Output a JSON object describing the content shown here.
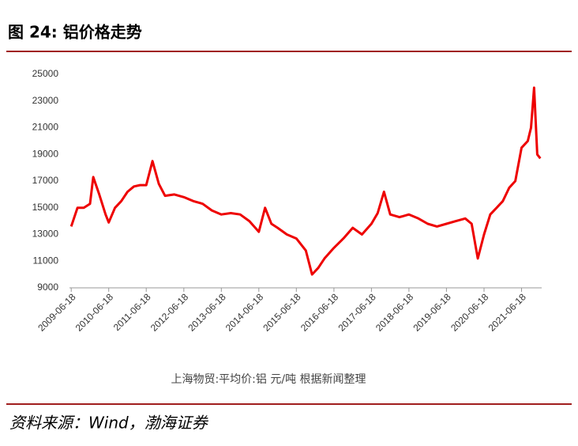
{
  "chart_data": {
    "type": "line",
    "title": "图 24:  铝价格走势",
    "note": "上海物贸:平均价:铝  元/吨  根据新闻整理",
    "source": "资料来源：Wind，渤海证券",
    "x": [
      "2009-06-18",
      "2009-08-18",
      "2009-10-18",
      "2009-12-18",
      "2010-01-18",
      "2010-03-18",
      "2010-05-18",
      "2010-06-18",
      "2010-08-18",
      "2010-10-18",
      "2010-12-18",
      "2011-02-18",
      "2011-04-18",
      "2011-06-18",
      "2011-08-18",
      "2011-10-18",
      "2011-12-18",
      "2012-03-18",
      "2012-06-18",
      "2012-09-18",
      "2012-12-18",
      "2013-03-18",
      "2013-06-18",
      "2013-09-18",
      "2013-12-18",
      "2014-03-18",
      "2014-06-18",
      "2014-08-18",
      "2014-10-18",
      "2014-12-18",
      "2015-03-18",
      "2015-06-18",
      "2015-09-18",
      "2015-11-18",
      "2016-01-18",
      "2016-03-18",
      "2016-06-18",
      "2016-09-18",
      "2016-12-18",
      "2017-03-18",
      "2017-06-18",
      "2017-08-18",
      "2017-10-18",
      "2017-12-18",
      "2018-03-18",
      "2018-06-18",
      "2018-09-18",
      "2018-12-18",
      "2019-03-18",
      "2019-06-18",
      "2019-09-18",
      "2019-12-18",
      "2020-02-18",
      "2020-04-18",
      "2020-06-18",
      "2020-08-18",
      "2020-10-18",
      "2020-12-18",
      "2021-02-18",
      "2021-04-18",
      "2021-06-18",
      "2021-08-18",
      "2021-09-18",
      "2021-10-18",
      "2021-11-18",
      "2021-12-18"
    ],
    "series": [
      {
        "name": "上海物贸:平均价:铝",
        "color": "#ee0000",
        "values": [
          13600,
          15000,
          15000,
          15300,
          17300,
          16000,
          14500,
          13900,
          15000,
          15500,
          16200,
          16600,
          16700,
          16700,
          18500,
          16800,
          15900,
          16000,
          15800,
          15500,
          15300,
          14800,
          14500,
          14600,
          14500,
          14000,
          13200,
          15000,
          13800,
          13500,
          13000,
          12700,
          11800,
          10000,
          10500,
          11200,
          12000,
          12700,
          13500,
          13000,
          13800,
          14600,
          16200,
          14500,
          14300,
          14500,
          14200,
          13800,
          13600,
          13800,
          14000,
          14200,
          13800,
          11200,
          13000,
          14500,
          15000,
          15500,
          16500,
          17000,
          19500,
          20000,
          21000,
          24000,
          19000,
          18700
        ]
      }
    ],
    "xlim": [
      "2009-06-01",
      "2021-12-31"
    ],
    "xticks": [
      "2009-06-18",
      "2010-06-18",
      "2011-06-18",
      "2012-06-18",
      "2013-06-18",
      "2014-06-18",
      "2015-06-18",
      "2016-06-18",
      "2017-06-18",
      "2018-06-18",
      "2019-06-18",
      "2020-06-18",
      "2021-06-18"
    ],
    "ylim": [
      9000,
      25000
    ],
    "yticks": [
      9000,
      11000,
      13000,
      15000,
      17000,
      19000,
      21000,
      23000,
      25000
    ],
    "grid": false
  }
}
